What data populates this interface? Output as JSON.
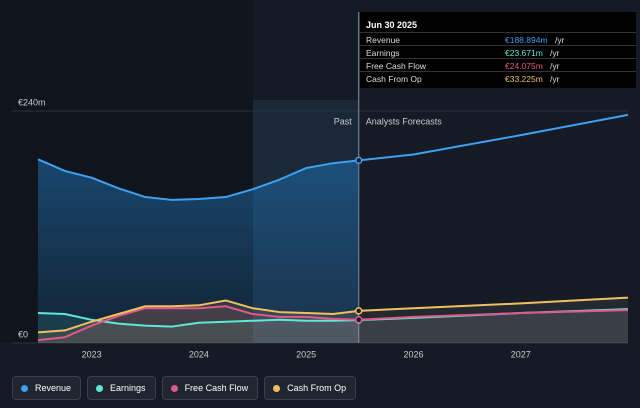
{
  "chart_data": {
    "type": "line",
    "x": [
      2022.5,
      2022.75,
      2023.0,
      2023.25,
      2023.5,
      2023.75,
      2024.0,
      2024.25,
      2024.5,
      2024.75,
      2025.0,
      2025.25,
      2025.49,
      2026.0,
      2027.0,
      2028.0
    ],
    "series": [
      {
        "name": "Revenue",
        "color": "#3ea0f0",
        "values": [
          190,
          178,
          171,
          160,
          151,
          148,
          149,
          151,
          159,
          169,
          181,
          186,
          188.894,
          195,
          215,
          236
        ]
      },
      {
        "name": "Earnings",
        "color": "#5ee8d8",
        "values": [
          31,
          30,
          24,
          20,
          18,
          17,
          21,
          22,
          23,
          24,
          23,
          23,
          23.671,
          26,
          31,
          35
        ]
      },
      {
        "name": "Free Cash Flow",
        "color": "#e0578a",
        "values": [
          3,
          6,
          18,
          28,
          36,
          36,
          36,
          38,
          30,
          27,
          27,
          25,
          24.075,
          27,
          31,
          34
        ]
      },
      {
        "name": "Cash From Op",
        "color": "#f0c060",
        "values": [
          11,
          13,
          22,
          30,
          38,
          38,
          39,
          44,
          36,
          32,
          31,
          30,
          33.225,
          36,
          41,
          47
        ]
      }
    ],
    "xlim": [
      2022.5,
      2028
    ],
    "xticks": [
      2023,
      2024,
      2025,
      2026,
      2027
    ],
    "ylim": [
      0,
      240
    ],
    "yticks": [
      {
        "value": 0,
        "label": "€0"
      },
      {
        "value": 240,
        "label": "€240m"
      }
    ],
    "annotations": [
      "Past",
      "Analysts Forecasts"
    ],
    "tooltip": {
      "title": "Jun 30 2025",
      "rows": [
        {
          "label": "Revenue",
          "value": "€188.894m",
          "unit": "/yr"
        },
        {
          "label": "Earnings",
          "value": "€23.671m",
          "unit": "/yr"
        },
        {
          "label": "Free Cash Flow",
          "value": "€24.075m",
          "unit": "/yr"
        },
        {
          "label": "Cash From Op",
          "value": "€33.225m",
          "unit": "/yr"
        }
      ]
    }
  }
}
